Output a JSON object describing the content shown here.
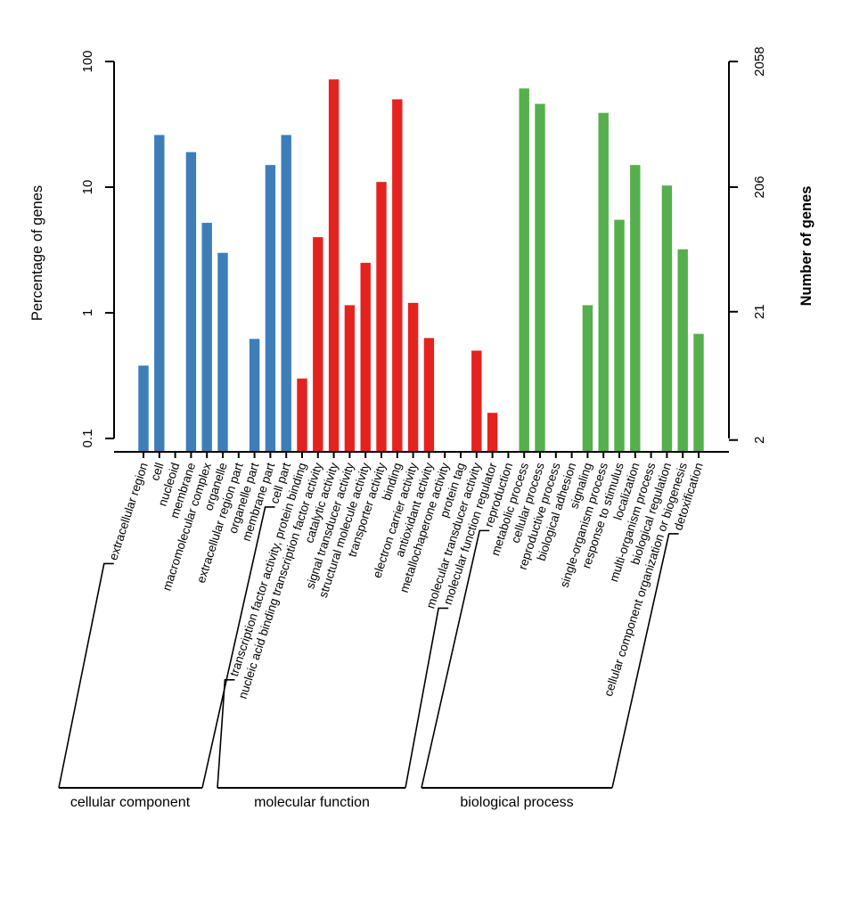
{
  "chart_data": {
    "type": "bar",
    "title": "",
    "yscale": "log",
    "grid": false,
    "legend": "none",
    "total_genes": 2058,
    "axes": {
      "left": {
        "label": "Percentage of genes",
        "ticks": [
          0.1,
          1,
          10,
          100
        ],
        "range": [
          0.1,
          100
        ]
      },
      "right": {
        "label": "Number of genes",
        "ticks": [
          2,
          21,
          206,
          2058
        ]
      }
    },
    "groups": [
      {
        "name": "cellular component",
        "color": "#3D7EB8",
        "categories": [
          "extracellular region",
          "cell",
          "nucleoid",
          "membrane",
          "macromolecular complex",
          "organelle",
          "extracellular region part",
          "organelle part",
          "membrane part",
          "cell part"
        ],
        "percent": [
          0.38,
          26,
          0,
          19,
          5.2,
          3.0,
          0,
          0.62,
          15,
          26
        ]
      },
      {
        "name": "molecular function",
        "color": "#E42320",
        "categories": [
          "transcription factor activity, protein binding",
          "nucleic acid binding transcription factor activity",
          "catalytic activity",
          "signal transducer activity",
          "structural molecule activity",
          "transporter activity",
          "binding",
          "electron carrier activity",
          "antioxidant activity",
          "metallochaperone activity",
          "protein tag",
          "molecular transducer activity",
          "molecular function regulator"
        ],
        "percent": [
          0.3,
          4.0,
          72,
          1.15,
          2.5,
          11,
          50,
          1.2,
          0.63,
          0,
          0,
          0.5,
          0.16
        ]
      },
      {
        "name": "biological process",
        "color": "#55AF4D",
        "categories": [
          "reproduction",
          "metabolic process",
          "cellular process",
          "reproductive process",
          "biological adhesion",
          "signaling",
          "single-organism process",
          "response to stimulus",
          "localization",
          "multi-organism process",
          "biological regulation",
          "cellular component organization or biogenesis",
          "detoxification"
        ],
        "percent": [
          0,
          61,
          46,
          0,
          0,
          1.15,
          39,
          5.5,
          15,
          0,
          10.3,
          3.2,
          0.68
        ]
      }
    ]
  }
}
